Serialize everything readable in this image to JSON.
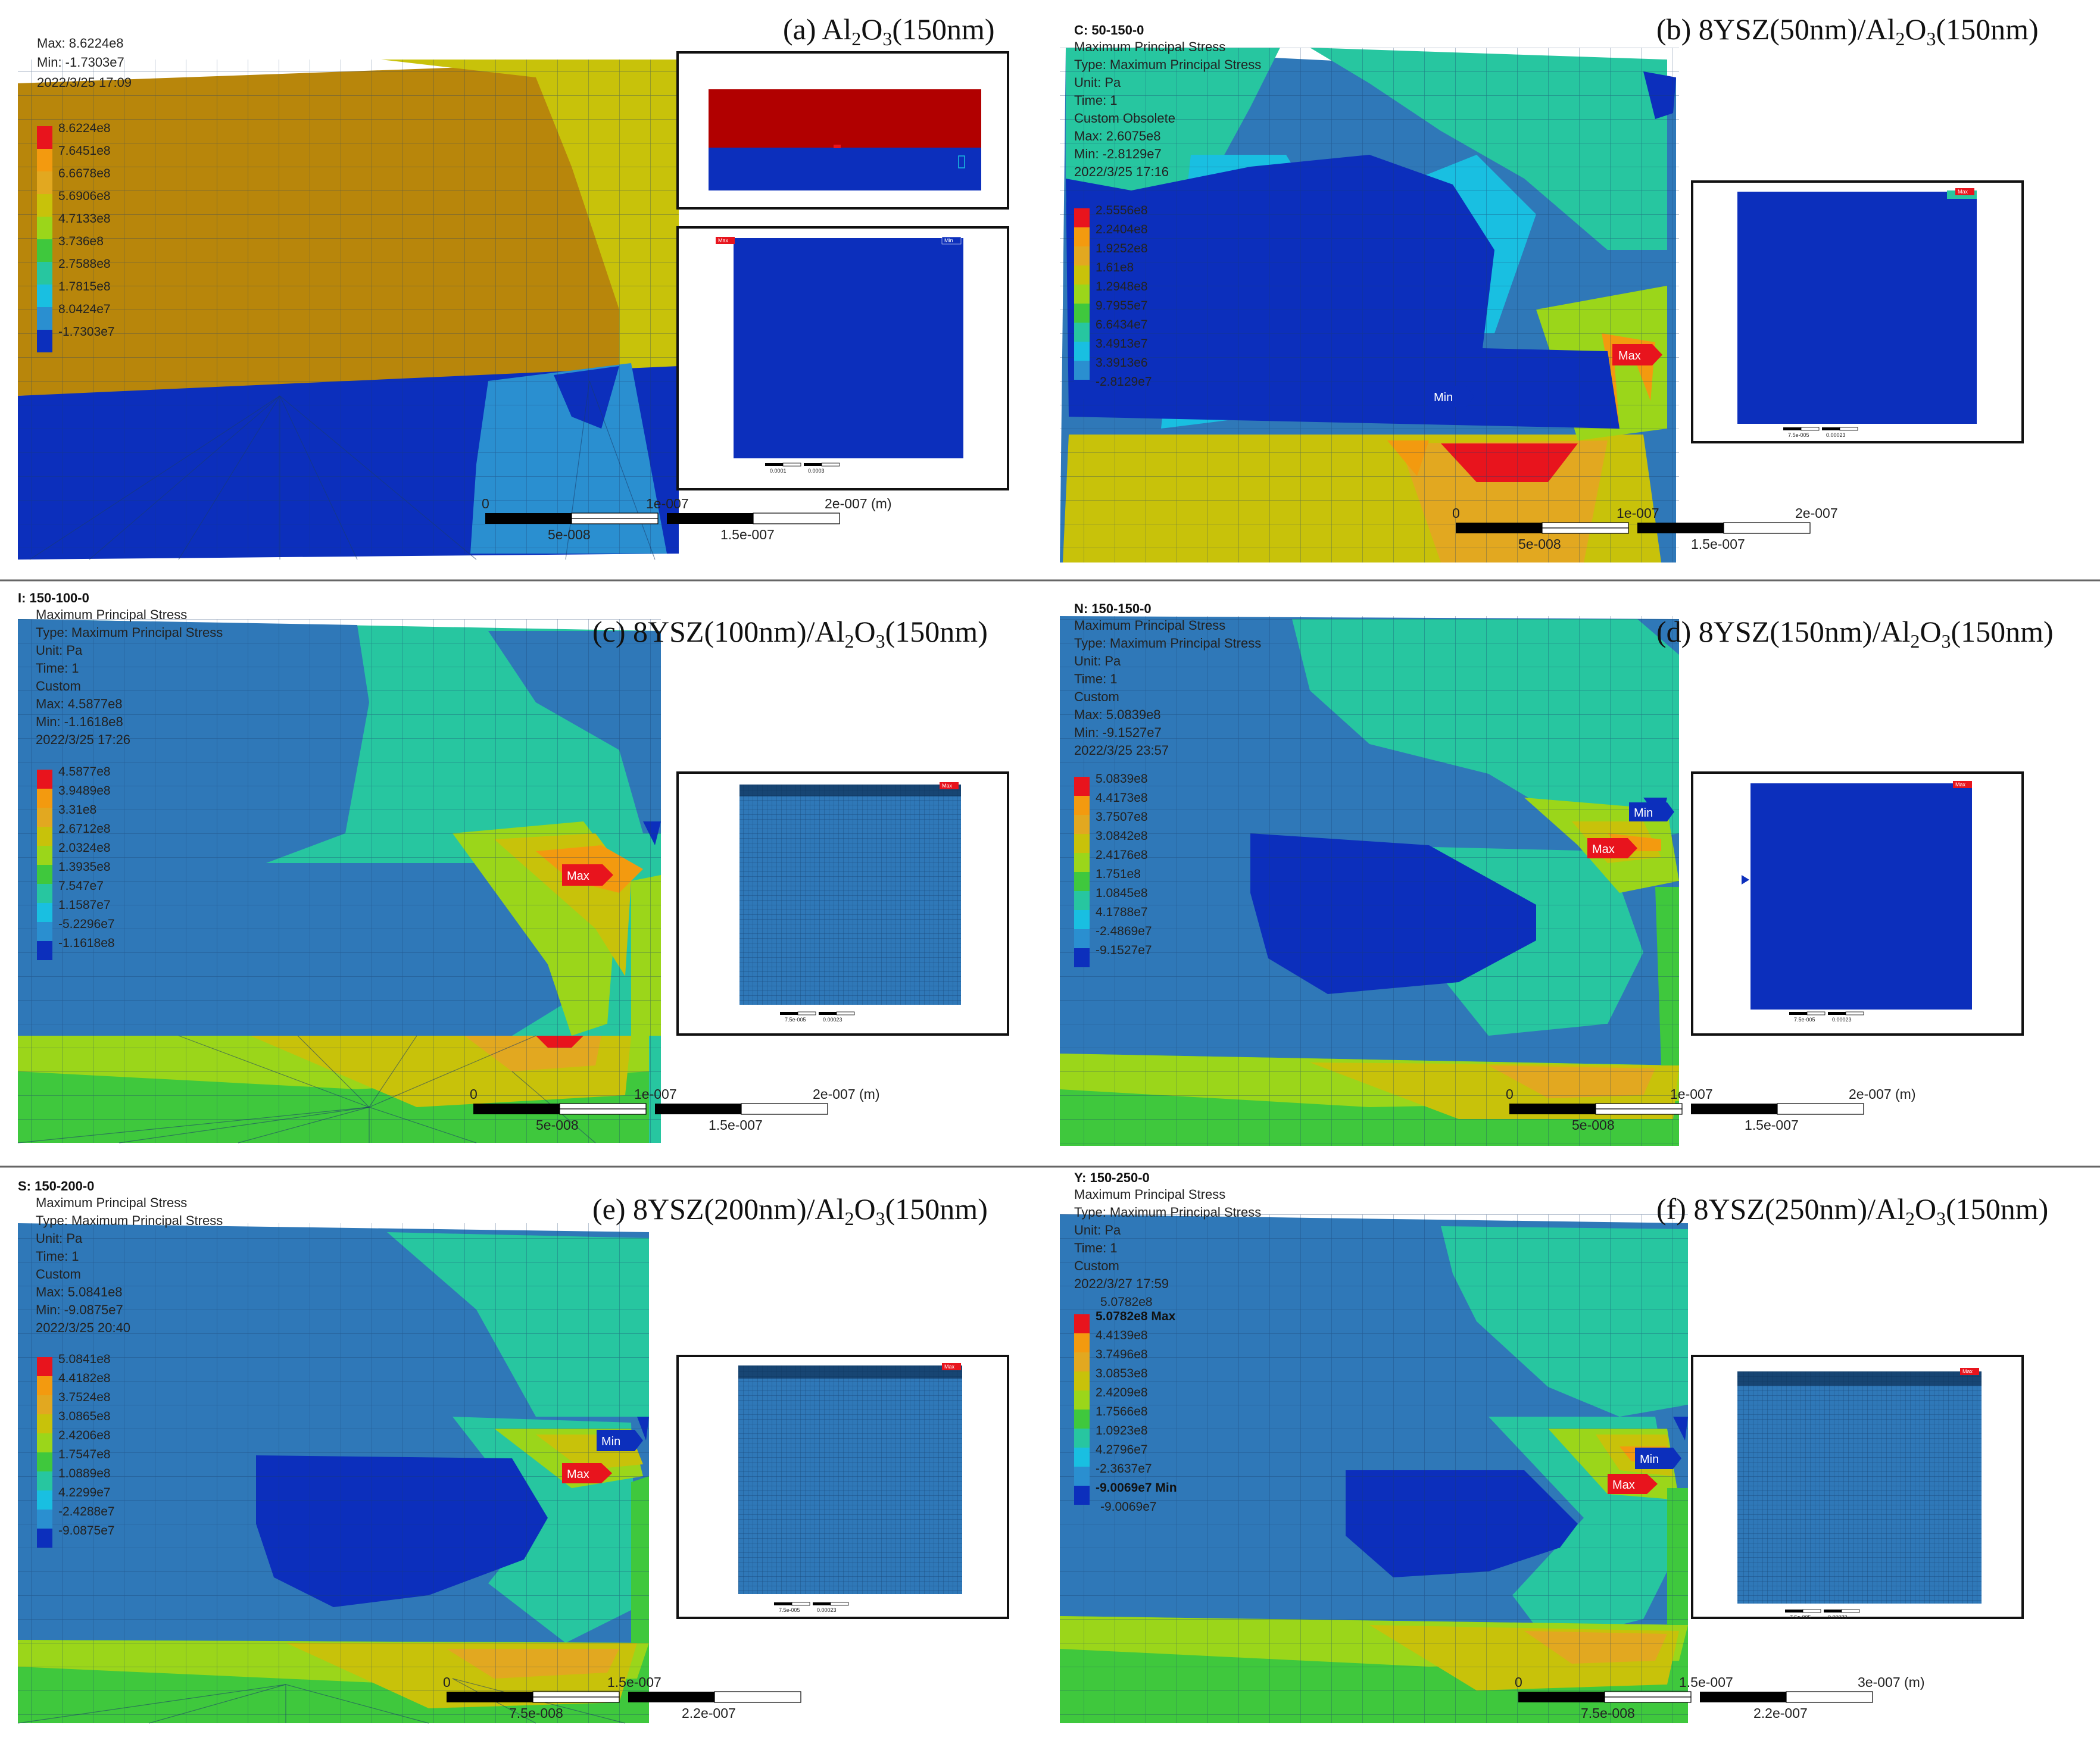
{
  "figure": {
    "palette": {
      "red": "#e8141d",
      "orange": "#f39a0f",
      "light_orange": "#e2a820",
      "yellow": "#c8c20a",
      "lime": "#9bd61a",
      "green": "#3fc83d",
      "teal": "#27c6a0",
      "cyan": "#19bfe1",
      "sky": "#2a8fd0",
      "steel_blue": "#2f78b8",
      "blue": "#0c2fbc",
      "brown": "#b8860b"
    },
    "colorbar_colors": [
      "#e8141d",
      "#f39a0f",
      "#e2a820",
      "#c8c20a",
      "#9bd61a",
      "#3fc83d",
      "#27c6a0",
      "#19bfe1",
      "#2a8fd0",
      "#0c2fbc"
    ],
    "panels": [
      {
        "id": "a",
        "title_prefix": "(a) Al",
        "title_rest": "O",
        "sub1": "2",
        "sub2": "3",
        "title_suffix": "(150nm)",
        "info_bold": "",
        "info_lines": [
          "Max: 8.6224e8",
          "Min: -1.7303e7",
          "2022/3/25 17:09"
        ],
        "legend": [
          "8.6224e8",
          "7.6451e8",
          "6.6678e8",
          "5.6906e8",
          "4.7133e8",
          "3.736e8",
          "2.7588e8",
          "1.7815e8",
          "8.0424e7",
          "-1.7303e7"
        ],
        "markers": [],
        "scale": {
          "zero": "0",
          "mid": "1e-007",
          "end": "2e-007 (m)",
          "q1": "5e-008",
          "q3": "1.5e-007"
        },
        "inset_top": {
          "labels": []
        },
        "inset": {
          "max": "Max",
          "min": "Min",
          "s1": "0.0001",
          "s2": "0.0003"
        }
      },
      {
        "id": "b",
        "title_prefix": "(b) 8YSZ(50nm)/Al",
        "title_rest": "O",
        "sub1": "2",
        "sub2": "3",
        "title_suffix": "(150nm)",
        "info_bold": "C: 50-150-0",
        "info_lines": [
          "Maximum Principal Stress",
          "Type: Maximum Principal Stress",
          "Unit: Pa",
          "Time: 1",
          "Custom Obsolete",
          "Max: 2.6075e8",
          "Min: -2.8129e7",
          "2022/3/25 17:16"
        ],
        "legend": [
          "2.5556e8",
          "2.2404e8",
          "1.9252e8",
          "1.61e8",
          "1.2948e8",
          "9.7955e7",
          "6.6434e7",
          "3.4913e7",
          "3.3913e6",
          "-2.8129e7"
        ],
        "markers": [
          {
            "label": "Max",
            "kind": "max"
          },
          {
            "label": "Min",
            "kind": "min"
          }
        ],
        "scale": {
          "zero": "0",
          "mid": "1e-007",
          "end": "2e-007",
          "q1": "5e-008",
          "q3": "1.5e-007"
        },
        "inset": {
          "max": "Max",
          "min": "",
          "s1": "7.5e-005",
          "s2": "0.00023"
        }
      },
      {
        "id": "c",
        "title_prefix": "(c) 8YSZ(100nm)/Al",
        "title_rest": "O",
        "sub1": "2",
        "sub2": "3",
        "title_suffix": "(150nm)",
        "info_bold": "I: 150-100-0",
        "info_lines": [
          "Maximum Principal Stress",
          "Type: Maximum Principal Stress",
          "Unit: Pa",
          "Time: 1",
          "Custom",
          "Max: 4.5877e8",
          "Min: -1.1618e8",
          "2022/3/25 17:26"
        ],
        "legend": [
          "4.5877e8",
          "3.9489e8",
          "3.31e8",
          "2.6712e8",
          "2.0324e8",
          "1.3935e8",
          "7.547e7",
          "1.1587e7",
          "-5.2296e7",
          "-1.1618e8"
        ],
        "markers": [
          {
            "label": "Max",
            "kind": "max"
          }
        ],
        "scale": {
          "zero": "0",
          "mid": "1e-007",
          "end": "2e-007 (m)",
          "q1": "5e-008",
          "q3": "1.5e-007"
        },
        "inset": {
          "max": "Max",
          "min": "",
          "s1": "7.5e-005",
          "s2": "0.00023"
        }
      },
      {
        "id": "d",
        "title_prefix": "(d) 8YSZ(150nm)/Al",
        "title_rest": "O",
        "sub1": "2",
        "sub2": "3",
        "title_suffix": "(150nm)",
        "info_bold": "N: 150-150-0",
        "info_lines": [
          "Maximum Principal Stress",
          "Type: Maximum Principal Stress",
          "Unit: Pa",
          "Time: 1",
          "Custom",
          "Max: 5.0839e8",
          "Min: -9.1527e7",
          "2022/3/25 23:57"
        ],
        "legend": [
          "5.0839e8",
          "4.4173e8",
          "3.7507e8",
          "3.0842e8",
          "2.4176e8",
          "1.751e8",
          "1.0845e8",
          "4.1788e7",
          "-2.4869e7",
          "-9.1527e7"
        ],
        "markers": [
          {
            "label": "Min",
            "kind": "min"
          },
          {
            "label": "Max",
            "kind": "max"
          }
        ],
        "scale": {
          "zero": "0",
          "mid": "1e-007",
          "end": "2e-007 (m)",
          "q1": "5e-008",
          "q3": "1.5e-007"
        },
        "inset": {
          "max": "Max",
          "min": "",
          "s1": "7.5e-005",
          "s2": "0.00023"
        }
      },
      {
        "id": "e",
        "title_prefix": "(e) 8YSZ(200nm)/Al",
        "title_rest": "O",
        "sub1": "2",
        "sub2": "3",
        "title_suffix": "(150nm)",
        "info_bold": "S: 150-200-0",
        "info_lines": [
          "Maximum Principal Stress",
          "Type: Maximum Principal Stress",
          "Unit: Pa",
          "Time: 1",
          "Custom",
          "Max: 5.0841e8",
          "Min: -9.0875e7",
          "2022/3/25 20:40"
        ],
        "legend": [
          "5.0841e8",
          "4.4182e8",
          "3.7524e8",
          "3.0865e8",
          "2.4206e8",
          "1.7547e8",
          "1.0889e8",
          "4.2299e7",
          "-2.4288e7",
          "-9.0875e7"
        ],
        "markers": [
          {
            "label": "Min",
            "kind": "min"
          },
          {
            "label": "Max",
            "kind": "max"
          }
        ],
        "scale": {
          "zero": "0",
          "mid": "1.5e-007",
          "end": "",
          "q1": "7.5e-008",
          "q3": "2.2e-007"
        },
        "inset": {
          "max": "Max",
          "min": "",
          "s1": "7.5e-005",
          "s2": "0.00023"
        }
      },
      {
        "id": "f",
        "title_prefix": "(f) 8YSZ(250nm)/Al",
        "title_rest": "O",
        "sub1": "2",
        "sub2": "3",
        "title_suffix": "(150nm)",
        "info_bold": "Y: 150-250-0",
        "info_lines": [
          "Maximum Principal Stress",
          "Type: Maximum Principal Stress",
          "Unit: Pa",
          "Time: 1",
          "Custom",
          "2022/3/27 17:59"
        ],
        "legend_top": "5.0782e8",
        "legend": [
          "5.0782e8 Max",
          "4.4139e8",
          "3.7496e8",
          "3.0853e8",
          "2.4209e8",
          "1.7566e8",
          "1.0923e8",
          "4.2796e7",
          "-2.3637e7",
          "-9.0069e7 Min"
        ],
        "legend_bottom": "-9.0069e7",
        "markers": [
          {
            "label": "Min",
            "kind": "min"
          },
          {
            "label": "Max",
            "kind": "max"
          }
        ],
        "scale": {
          "zero": "0",
          "mid": "1.5e-007",
          "end": "3e-007 (m)",
          "q1": "7.5e-008",
          "q3": "2.2e-007"
        },
        "inset": {
          "max": "Max",
          "min": "",
          "s1": "7.5e-005",
          "s2": "0.00023"
        }
      }
    ]
  }
}
